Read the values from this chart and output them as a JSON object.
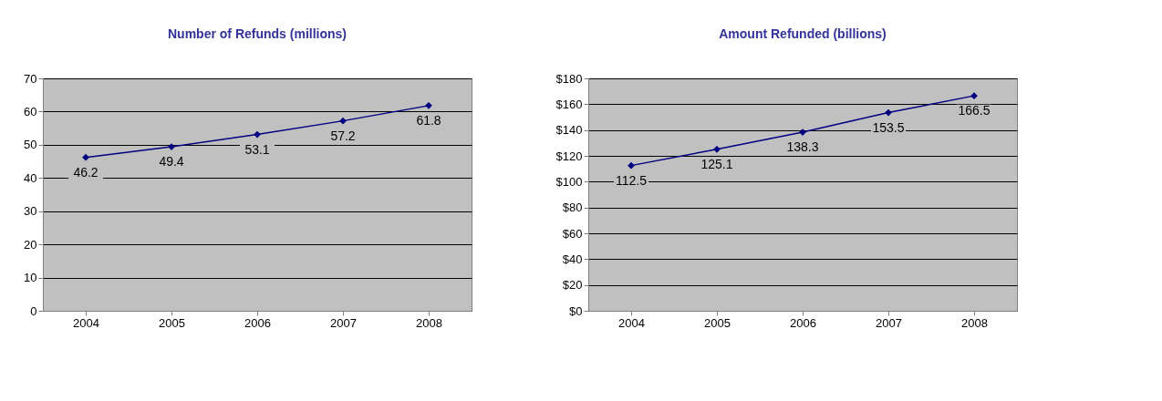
{
  "chart_data": [
    {
      "type": "line",
      "title": "Number of Refunds (millions)",
      "categories": [
        "2004",
        "2005",
        "2006",
        "2007",
        "2008"
      ],
      "series": [
        {
          "color": "#000080",
          "values": [
            46.2,
            49.4,
            53.1,
            57.2,
            61.8
          ]
        }
      ],
      "ylim": [
        0,
        70
      ],
      "yticks": [
        0,
        10,
        20,
        30,
        40,
        50,
        60,
        70
      ],
      "grid": "y",
      "marker": "diamond",
      "data_labels": true
    },
    {
      "type": "line",
      "title": "Amount Refunded (billions)",
      "categories": [
        "2004",
        "2005",
        "2006",
        "2007",
        "2008"
      ],
      "series": [
        {
          "color": "#000080",
          "values": [
            112.5,
            125.1,
            138.3,
            153.5,
            166.5
          ]
        }
      ],
      "ylim": [
        0,
        180
      ],
      "yticks": [
        {
          "value": 0,
          "label": "$0"
        },
        {
          "value": 20,
          "label": "$20"
        },
        {
          "value": 40,
          "label": "$40"
        },
        {
          "value": 60,
          "label": "$60"
        },
        {
          "value": 80,
          "label": "$80"
        },
        {
          "value": 100,
          "label": "$100"
        },
        {
          "value": 120,
          "label": "$120"
        },
        {
          "value": 140,
          "label": "$140"
        },
        {
          "value": 160,
          "label": "$160"
        },
        {
          "value": 180,
          "label": "$180"
        }
      ],
      "grid": "y",
      "marker": "diamond",
      "data_labels": true
    }
  ]
}
